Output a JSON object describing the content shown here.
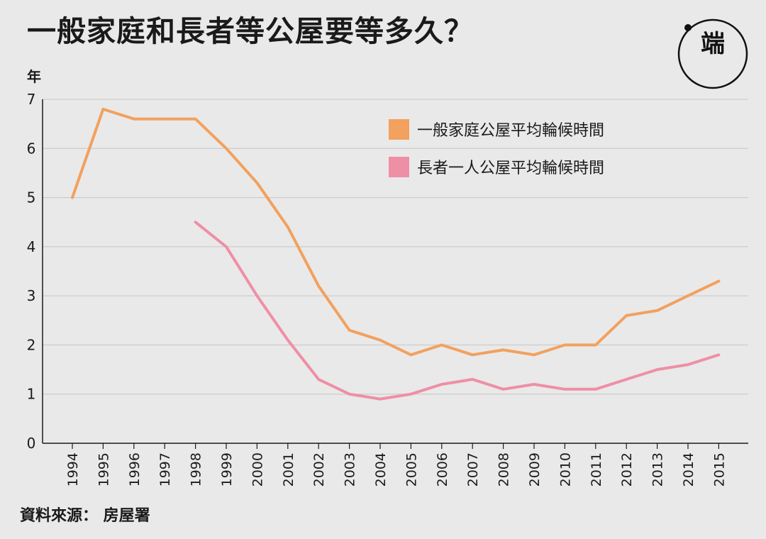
{
  "page": {
    "title": "一般家庭和長者等公屋要等多久？",
    "y_unit": "年",
    "source": "資料來源： 房屋署",
    "logo_text": "端"
  },
  "colors": {
    "background": "#e9e9e9",
    "grid": "#c6c6c6",
    "axis": "#1a1a1a",
    "general": "#f2a15f",
    "elderly": "#ef8fa6"
  },
  "chart_data": {
    "type": "line",
    "title": "一般家庭和長者等公屋要等多久？",
    "xlabel": "",
    "ylabel": "年",
    "ylim": [
      0,
      7
    ],
    "yticks": [
      0,
      1,
      2,
      3,
      4,
      5,
      6,
      7
    ],
    "grid": true,
    "legend_position": "top-right",
    "categories": [
      "1994",
      "1995",
      "1996",
      "1997",
      "1998",
      "1999",
      "2000",
      "2001",
      "2002",
      "2003",
      "2004",
      "2005",
      "2006",
      "2007",
      "2008",
      "2009",
      "2010",
      "2011",
      "2012",
      "2013",
      "2014",
      "2015"
    ],
    "series": [
      {
        "name": "一般家庭公屋平均輪候時間",
        "color": "#f2a15f",
        "values": [
          5.0,
          6.8,
          6.6,
          6.6,
          6.6,
          6.0,
          5.3,
          4.4,
          3.2,
          2.3,
          2.1,
          1.8,
          2.0,
          1.8,
          1.9,
          1.8,
          2.0,
          2.0,
          2.6,
          2.7,
          3.0,
          3.3
        ]
      },
      {
        "name": "長者一人公屋平均輪候時間",
        "color": "#ef8fa6",
        "values": [
          null,
          null,
          null,
          null,
          4.5,
          4.0,
          3.0,
          2.1,
          1.3,
          1.0,
          0.9,
          1.0,
          1.2,
          1.3,
          1.1,
          1.2,
          1.1,
          1.1,
          1.3,
          1.5,
          1.6,
          1.8
        ]
      }
    ]
  }
}
